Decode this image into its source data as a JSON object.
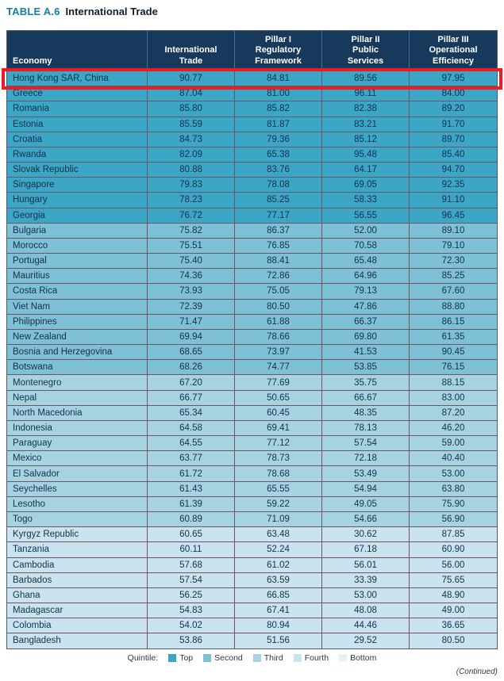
{
  "title": {
    "label": "TABLE A.6",
    "name": "International Trade"
  },
  "table": {
    "columns": [
      "Economy",
      "International\nTrade",
      "Pillar I\nRegulatory\nFramework",
      "Pillar II\nPublic\nServices",
      "Pillar III\nOperational\nEfficiency"
    ],
    "rows": [
      {
        "economy": "Hong Kong SAR, China",
        "values": [
          "90.77",
          "84.81",
          "89.56",
          "97.95"
        ],
        "quintile": "top",
        "highlighted": true
      },
      {
        "economy": "Greece",
        "values": [
          "87.04",
          "81.00",
          "96.11",
          "84.00"
        ],
        "quintile": "top",
        "highlighted": false
      },
      {
        "economy": "Romania",
        "values": [
          "85.80",
          "85.82",
          "82.38",
          "89.20"
        ],
        "quintile": "top",
        "highlighted": false
      },
      {
        "economy": "Estonia",
        "values": [
          "85.59",
          "81.87",
          "83.21",
          "91.70"
        ],
        "quintile": "top",
        "highlighted": false
      },
      {
        "economy": "Croatia",
        "values": [
          "84.73",
          "79.36",
          "85.12",
          "89.70"
        ],
        "quintile": "top",
        "highlighted": false
      },
      {
        "economy": "Rwanda",
        "values": [
          "82.09",
          "65.38",
          "95.48",
          "85.40"
        ],
        "quintile": "top",
        "highlighted": false
      },
      {
        "economy": "Slovak Republic",
        "values": [
          "80.88",
          "83.76",
          "64.17",
          "94.70"
        ],
        "quintile": "top",
        "highlighted": false
      },
      {
        "economy": "Singapore",
        "values": [
          "79.83",
          "78.08",
          "69.05",
          "92.35"
        ],
        "quintile": "top",
        "highlighted": false
      },
      {
        "economy": "Hungary",
        "values": [
          "78.23",
          "85.25",
          "58.33",
          "91.10"
        ],
        "quintile": "top",
        "highlighted": false
      },
      {
        "economy": "Georgia",
        "values": [
          "76.72",
          "77.17",
          "56.55",
          "96.45"
        ],
        "quintile": "top",
        "highlighted": false
      },
      {
        "economy": "Bulgaria",
        "values": [
          "75.82",
          "86.37",
          "52.00",
          "89.10"
        ],
        "quintile": "second",
        "highlighted": false
      },
      {
        "economy": "Morocco",
        "values": [
          "75.51",
          "76.85",
          "70.58",
          "79.10"
        ],
        "quintile": "second",
        "highlighted": false
      },
      {
        "economy": "Portugal",
        "values": [
          "75.40",
          "88.41",
          "65.48",
          "72.30"
        ],
        "quintile": "second",
        "highlighted": false
      },
      {
        "economy": "Mauritius",
        "values": [
          "74.36",
          "72.86",
          "64.96",
          "85.25"
        ],
        "quintile": "second",
        "highlighted": false
      },
      {
        "economy": "Costa Rica",
        "values": [
          "73.93",
          "75.05",
          "79.13",
          "67.60"
        ],
        "quintile": "second",
        "highlighted": false
      },
      {
        "economy": "Viet Nam",
        "values": [
          "72.39",
          "80.50",
          "47.86",
          "88.80"
        ],
        "quintile": "second",
        "highlighted": false
      },
      {
        "economy": "Philippines",
        "values": [
          "71.47",
          "61.88",
          "66.37",
          "86.15"
        ],
        "quintile": "second",
        "highlighted": false
      },
      {
        "economy": "New Zealand",
        "values": [
          "69.94",
          "78.66",
          "69.80",
          "61.35"
        ],
        "quintile": "second",
        "highlighted": false
      },
      {
        "economy": "Bosnia and Herzegovina",
        "values": [
          "68.65",
          "73.97",
          "41.53",
          "90.45"
        ],
        "quintile": "second",
        "highlighted": false
      },
      {
        "economy": "Botswana",
        "values": [
          "68.26",
          "74.77",
          "53.85",
          "76.15"
        ],
        "quintile": "second",
        "highlighted": false
      },
      {
        "economy": "Montenegro",
        "values": [
          "67.20",
          "77.69",
          "35.75",
          "88.15"
        ],
        "quintile": "third",
        "highlighted": false
      },
      {
        "economy": "Nepal",
        "values": [
          "66.77",
          "50.65",
          "66.67",
          "83.00"
        ],
        "quintile": "third",
        "highlighted": false
      },
      {
        "economy": "North Macedonia",
        "values": [
          "65.34",
          "60.45",
          "48.35",
          "87.20"
        ],
        "quintile": "third",
        "highlighted": false
      },
      {
        "economy": "Indonesia",
        "values": [
          "64.58",
          "69.41",
          "78.13",
          "46.20"
        ],
        "quintile": "third",
        "highlighted": false
      },
      {
        "economy": "Paraguay",
        "values": [
          "64.55",
          "77.12",
          "57.54",
          "59.00"
        ],
        "quintile": "third",
        "highlighted": false
      },
      {
        "economy": "Mexico",
        "values": [
          "63.77",
          "78.73",
          "72.18",
          "40.40"
        ],
        "quintile": "third",
        "highlighted": false
      },
      {
        "economy": "El Salvador",
        "values": [
          "61.72",
          "78.68",
          "53.49",
          "53.00"
        ],
        "quintile": "third",
        "highlighted": false
      },
      {
        "economy": "Seychelles",
        "values": [
          "61.43",
          "65.55",
          "54.94",
          "63.80"
        ],
        "quintile": "third",
        "highlighted": false
      },
      {
        "economy": "Lesotho",
        "values": [
          "61.39",
          "59.22",
          "49.05",
          "75.90"
        ],
        "quintile": "third",
        "highlighted": false
      },
      {
        "economy": "Togo",
        "values": [
          "60.89",
          "71.09",
          "54.66",
          "56.90"
        ],
        "quintile": "third",
        "highlighted": false
      },
      {
        "economy": "Kyrgyz Republic",
        "values": [
          "60.65",
          "63.48",
          "30.62",
          "87.85"
        ],
        "quintile": "fourth",
        "highlighted": false
      },
      {
        "economy": "Tanzania",
        "values": [
          "60.11",
          "52.24",
          "67.18",
          "60.90"
        ],
        "quintile": "fourth",
        "highlighted": false
      },
      {
        "economy": "Cambodia",
        "values": [
          "57.68",
          "61.02",
          "56.01",
          "56.00"
        ],
        "quintile": "fourth",
        "highlighted": false
      },
      {
        "economy": "Barbados",
        "values": [
          "57.54",
          "63.59",
          "33.39",
          "75.65"
        ],
        "quintile": "fourth",
        "highlighted": false
      },
      {
        "economy": "Ghana",
        "values": [
          "56.25",
          "66.85",
          "53.00",
          "48.90"
        ],
        "quintile": "fourth",
        "highlighted": false
      },
      {
        "economy": "Madagascar",
        "values": [
          "54.83",
          "67.41",
          "48.08",
          "49.00"
        ],
        "quintile": "fourth",
        "highlighted": false
      },
      {
        "economy": "Colombia",
        "values": [
          "54.02",
          "80.94",
          "44.46",
          "36.65"
        ],
        "quintile": "fourth",
        "highlighted": false
      },
      {
        "economy": "Bangladesh",
        "values": [
          "53.86",
          "51.56",
          "29.52",
          "80.50"
        ],
        "quintile": "fourth",
        "highlighted": false
      }
    ]
  },
  "legend": {
    "label": "Quintile:",
    "items": [
      {
        "label": "Top",
        "color": "#3BA6C6"
      },
      {
        "label": "Second",
        "color": "#7EC0D5"
      },
      {
        "label": "Third",
        "color": "#A6D3E2"
      },
      {
        "label": "Fourth",
        "color": "#C9E4EF"
      },
      {
        "label": "Bottom",
        "color": "#E5F2F8"
      }
    ]
  },
  "footer": {
    "continued": "(Continued)"
  },
  "colors": {
    "top": "#3BA6C6",
    "second": "#7EC0D5",
    "third": "#A6D3E2",
    "fourth": "#C9E4EF",
    "bottom": "#E5F2F8",
    "header_bg": "#17395C",
    "highlight": "#EC1C24",
    "title_accent": "#147FA5"
  }
}
